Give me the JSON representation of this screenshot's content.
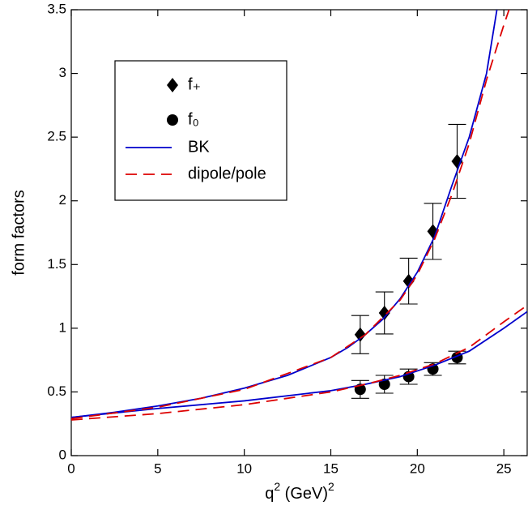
{
  "chart_data": {
    "type": "scatter",
    "xlabel_parts": [
      "q",
      "2",
      " (GeV)",
      "2"
    ],
    "ylabel": "form factors",
    "xlim": [
      0,
      26.35
    ],
    "ylim": [
      0,
      3.5
    ],
    "xticks": [
      0,
      5,
      10,
      15,
      20,
      25
    ],
    "yticks": [
      0,
      0.5,
      1,
      1.5,
      2,
      2.5,
      3,
      3.5
    ],
    "series": [
      {
        "name": "f₊",
        "color": "#000000",
        "marker": "diamond",
        "x": [
          16.7,
          18.1,
          19.5,
          20.9,
          22.3
        ],
        "values": [
          0.95,
          1.12,
          1.37,
          1.76,
          2.31
        ],
        "errors": [
          0.15,
          0.165,
          0.18,
          0.22,
          0.29
        ]
      },
      {
        "name": "f₀",
        "color": "#000000",
        "marker": "circle",
        "x": [
          16.7,
          18.1,
          19.5,
          20.9,
          22.3
        ],
        "values": [
          0.52,
          0.56,
          0.62,
          0.68,
          0.77
        ],
        "errors": [
          0.07,
          0.07,
          0.06,
          0.05,
          0.05
        ]
      },
      {
        "name": "BK",
        "color": "#0000cc",
        "dashed": false,
        "curves": [
          {
            "x": [
              0,
              2.5,
              5,
              7.5,
              10,
              12.5,
              15,
              16,
              17,
              18,
              19,
              20,
              21,
              22,
              23,
              24,
              24.6
            ],
            "values": [
              0.3,
              0.34,
              0.39,
              0.45,
              0.53,
              0.63,
              0.77,
              0.85,
              0.95,
              1.07,
              1.23,
              1.44,
              1.72,
              2.12,
              2.5,
              3.0,
              3.5
            ]
          },
          {
            "x": [
              0,
              5,
              10,
              15,
              17,
              19,
              21,
              23,
              25,
              26.35
            ],
            "values": [
              0.3,
              0.37,
              0.43,
              0.51,
              0.56,
              0.62,
              0.71,
              0.82,
              1.0,
              1.13
            ]
          }
        ]
      },
      {
        "name": "dipole/pole",
        "color": "#dd0000",
        "dashed": true,
        "curves": [
          {
            "x": [
              0,
              5,
              10,
              15,
              17,
              19,
              20,
              21,
              22,
              23,
              24,
              25,
              25.3
            ],
            "values": [
              0.29,
              0.38,
              0.52,
              0.77,
              0.95,
              1.22,
              1.42,
              1.7,
              2.05,
              2.45,
              2.95,
              3.38,
              3.5
            ]
          },
          {
            "x": [
              0,
              5,
              10,
              15,
              17,
              19,
              21,
              23,
              25,
              26.35
            ],
            "values": [
              0.28,
              0.33,
              0.4,
              0.5,
              0.56,
              0.63,
              0.72,
              0.85,
              1.05,
              1.18
            ]
          }
        ]
      }
    ]
  }
}
